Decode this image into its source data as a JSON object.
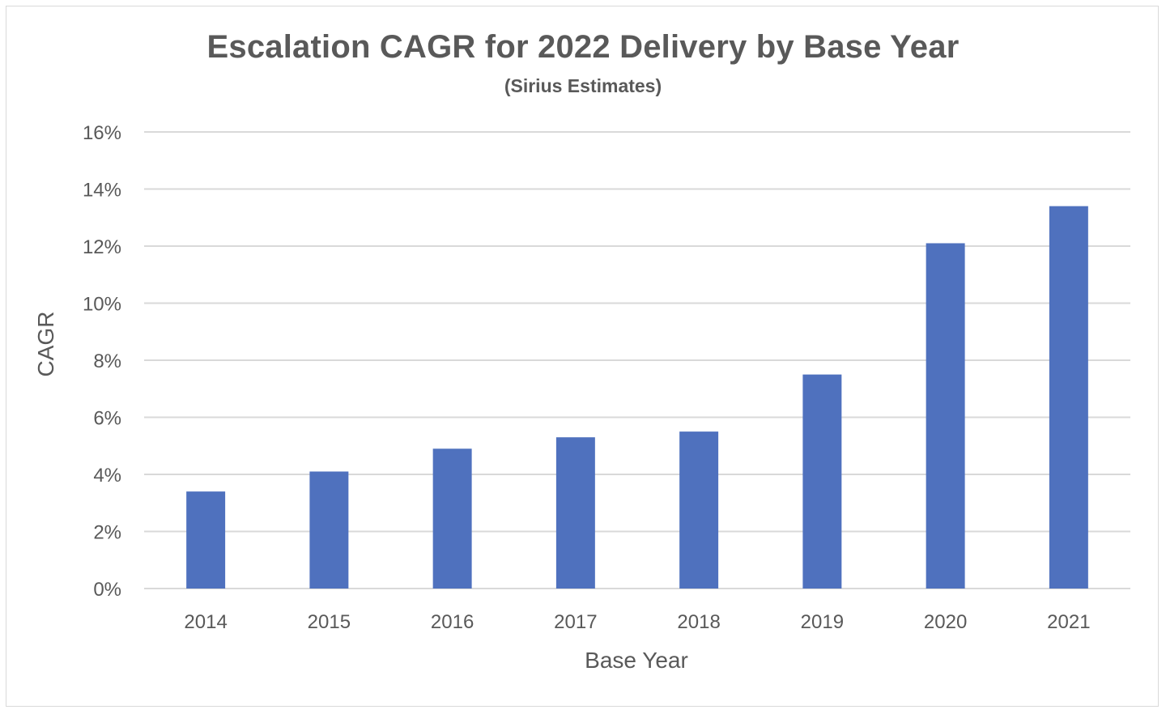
{
  "chart_data": {
    "type": "bar",
    "title": "Escalation CAGR for 2022 Delivery by Base Year",
    "subtitle": "(Sirius Estimates)",
    "xlabel": "Base Year",
    "ylabel": "CAGR",
    "categories": [
      "2014",
      "2015",
      "2016",
      "2017",
      "2018",
      "2019",
      "2020",
      "2021"
    ],
    "values": [
      3.4,
      4.1,
      4.9,
      5.3,
      5.5,
      7.5,
      12.1,
      13.4
    ],
    "ylim": [
      0,
      16
    ],
    "yticks": [
      0,
      2,
      4,
      6,
      8,
      10,
      12,
      14,
      16
    ],
    "ytick_format": "%",
    "grid": true,
    "legend": "none",
    "bar_color": "#4f71be",
    "grid_color": "#d9d9d9"
  }
}
